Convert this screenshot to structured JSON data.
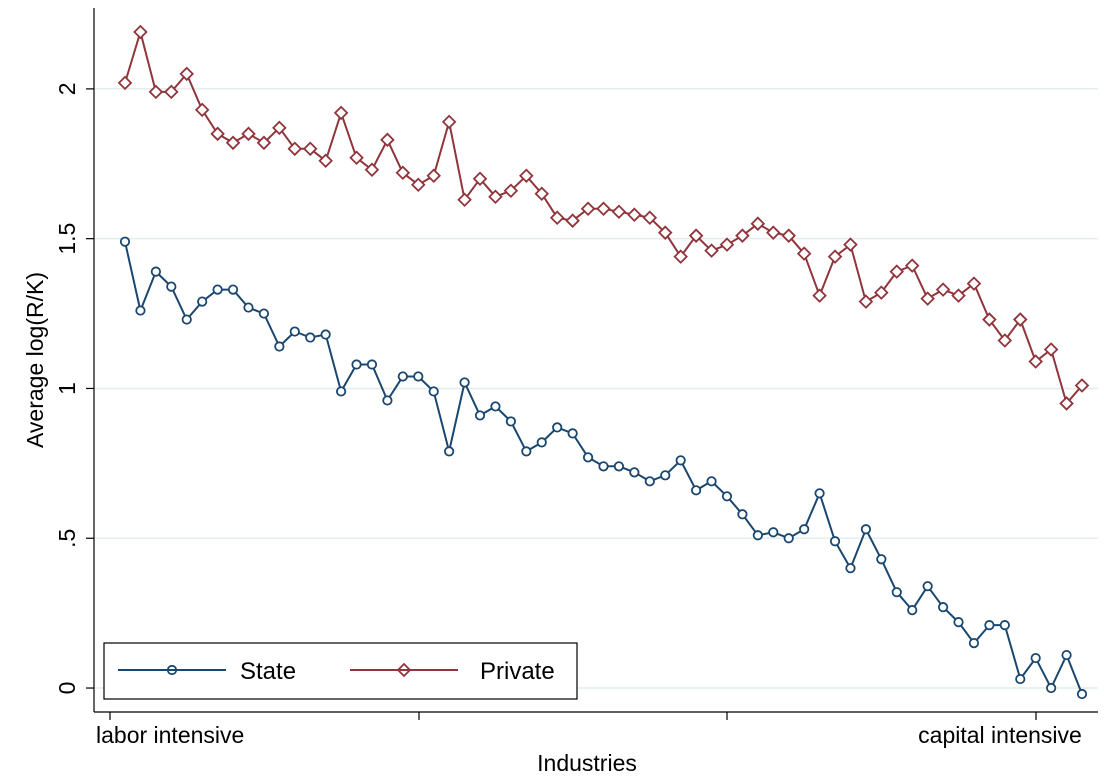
{
  "chart_data": {
    "type": "line",
    "xlabel": "Industries",
    "ylabel": "Average log(R/K)",
    "ylim": [
      -0.08,
      2.27
    ],
    "y_ticks": [
      0,
      0.5,
      1,
      1.5,
      2
    ],
    "y_tick_labels": [
      "0",
      ".5",
      "1",
      "1.5",
      "2"
    ],
    "x_tick_labels": [
      "labor intensive",
      "",
      "",
      "capital intensive"
    ],
    "grid": true,
    "legend_position": "bottom-left",
    "series": [
      {
        "name": "State",
        "color": "#1a476f",
        "marker": "circle",
        "values": [
          1.49,
          1.26,
          1.39,
          1.34,
          1.23,
          1.29,
          1.33,
          1.33,
          1.27,
          1.25,
          1.14,
          1.19,
          1.17,
          1.18,
          0.99,
          1.08,
          1.08,
          0.96,
          1.04,
          1.04,
          0.99,
          0.79,
          1.02,
          0.91,
          0.94,
          0.89,
          0.79,
          0.82,
          0.87,
          0.85,
          0.77,
          0.74,
          0.74,
          0.72,
          0.69,
          0.71,
          0.76,
          0.66,
          0.69,
          0.64,
          0.58,
          0.51,
          0.52,
          0.5,
          0.53,
          0.65,
          0.49,
          0.4,
          0.53,
          0.43,
          0.32,
          0.26,
          0.34,
          0.27,
          0.22,
          0.15,
          0.21,
          0.21,
          0.03,
          0.1,
          0.0,
          0.11,
          -0.02
        ]
      },
      {
        "name": "Private",
        "color": "#90353b",
        "marker": "diamond",
        "values": [
          2.02,
          2.19,
          1.99,
          1.99,
          2.05,
          1.93,
          1.85,
          1.82,
          1.85,
          1.82,
          1.87,
          1.8,
          1.8,
          1.76,
          1.92,
          1.77,
          1.73,
          1.83,
          1.72,
          1.68,
          1.71,
          1.89,
          1.63,
          1.7,
          1.64,
          1.66,
          1.71,
          1.65,
          1.57,
          1.56,
          1.6,
          1.6,
          1.59,
          1.58,
          1.57,
          1.52,
          1.44,
          1.51,
          1.46,
          1.48,
          1.51,
          1.55,
          1.52,
          1.51,
          1.45,
          1.31,
          1.44,
          1.48,
          1.29,
          1.32,
          1.39,
          1.41,
          1.3,
          1.33,
          1.31,
          1.35,
          1.23,
          1.16,
          1.23,
          1.09,
          1.13,
          0.95,
          1.01
        ]
      }
    ]
  }
}
